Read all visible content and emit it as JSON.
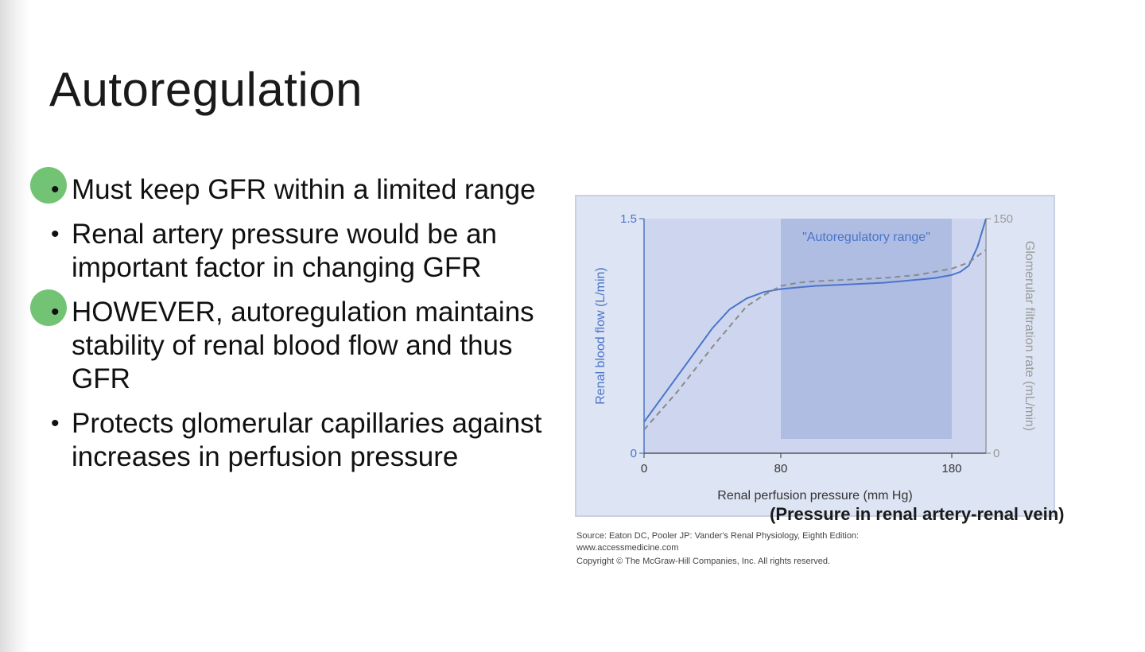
{
  "slide": {
    "title": "Autoregulation",
    "bullets": [
      {
        "text": "Must keep GFR within a limited range",
        "highlighted": true
      },
      {
        "text": "Renal artery pressure would be an important factor in changing GFR",
        "highlighted": false
      },
      {
        "text": "HOWEVER, autoregulation maintains stability of renal blood flow and thus GFR",
        "highlighted": true
      },
      {
        "text": "Protects glomerular capillaries against increases in perfusion pressure",
        "highlighted": false
      }
    ],
    "bullet_symbol": "•",
    "highlight_color": "#6cc06e",
    "caption": "(Pressure in renal artery-renal vein)",
    "source_lines": [
      "Source: Eaton DC, Pooler JP: Vander's Renal Physiology, Eighth Edition:",
      "www.accessmedicine.com",
      "Copyright © The McGraw-Hill Companies, Inc. All rights reserved."
    ]
  },
  "chart_data": {
    "type": "line",
    "xlabel": "Renal perfusion pressure (mm Hg)",
    "ylabel_left": "Renal blood flow (L/min)",
    "ylabel_right": "Glomerular filtration rate (mL/min)",
    "x_ticks": [
      "0",
      "80",
      "180"
    ],
    "y_left_ticks": [
      "0",
      "1.5"
    ],
    "y_right_ticks": [
      "0",
      "150"
    ],
    "xlim": [
      0,
      200
    ],
    "y_left_lim": [
      0,
      1.5
    ],
    "y_right_lim": [
      0,
      150
    ],
    "shaded_region": {
      "label": "\"Autoregulatory range\"",
      "x_start": 80,
      "x_end": 180
    },
    "series": [
      {
        "name": "Renal blood flow",
        "style": "solid",
        "color": "#4a74c9",
        "axis": "left",
        "x": [
          0,
          10,
          20,
          30,
          40,
          50,
          60,
          70,
          80,
          90,
          100,
          110,
          120,
          130,
          140,
          150,
          160,
          170,
          180,
          185,
          190,
          195,
          200
        ],
        "y": [
          0.2,
          0.35,
          0.5,
          0.65,
          0.8,
          0.92,
          0.99,
          1.03,
          1.05,
          1.06,
          1.07,
          1.075,
          1.08,
          1.085,
          1.09,
          1.1,
          1.11,
          1.12,
          1.14,
          1.16,
          1.2,
          1.32,
          1.5
        ]
      },
      {
        "name": "Glomerular filtration rate",
        "style": "dashed",
        "color": "#8a8a8a",
        "axis": "right",
        "x": [
          0,
          20,
          40,
          60,
          70,
          80,
          90,
          100,
          120,
          140,
          160,
          180,
          190,
          200
        ],
        "y": [
          15,
          40,
          68,
          94,
          101,
          107,
          109,
          110,
          111,
          112,
          114,
          118,
          122,
          130
        ]
      }
    ],
    "colors": {
      "panel_bg": "#dde4f3",
      "plot_bg": "#cdd6ee",
      "shaded_bg": "#a9b8e0",
      "left_axis": "#4a74c9",
      "right_axis": "#9a9a9a"
    }
  }
}
